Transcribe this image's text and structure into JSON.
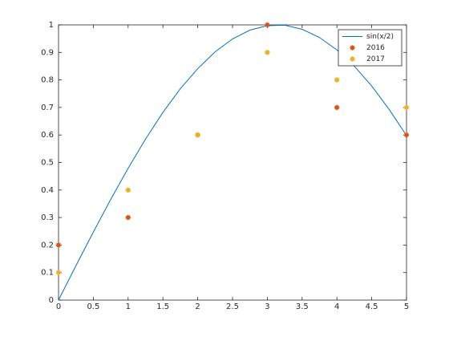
{
  "chart_data": {
    "type": "line",
    "xlim": [
      0,
      5
    ],
    "ylim": [
      0,
      1
    ],
    "xticks": [
      0,
      0.5,
      1,
      1.5,
      2,
      2.5,
      3,
      3.5,
      4,
      4.5,
      5
    ],
    "yticks": [
      0,
      0.1,
      0.2,
      0.3,
      0.4,
      0.5,
      0.6,
      0.7,
      0.8,
      0.9,
      1
    ],
    "grid": false,
    "legend": "northeast",
    "series": [
      {
        "name": "sin(x/2)",
        "color": "#0072bd",
        "style": "line",
        "x": [
          0,
          0.25,
          0.5,
          0.75,
          1,
          1.25,
          1.5,
          1.75,
          2,
          2.25,
          2.5,
          2.75,
          3,
          3.25,
          3.5,
          3.75,
          4,
          4.25,
          4.5,
          4.75,
          5
        ],
        "values": [
          0,
          0.125,
          0.247,
          0.366,
          0.479,
          0.585,
          0.682,
          0.768,
          0.841,
          0.902,
          0.949,
          0.981,
          0.997,
          0.999,
          0.984,
          0.954,
          0.909,
          0.85,
          0.778,
          0.693,
          0.598
        ]
      },
      {
        "name": "2016",
        "color": "#d95319",
        "style": "markers",
        "x": [
          0,
          1,
          2,
          3,
          4,
          5
        ],
        "values": [
          0.2,
          0.3,
          0.6,
          1,
          0.7,
          0.6
        ]
      },
      {
        "name": "2017",
        "color": "#edb120",
        "style": "markers",
        "x": [
          0,
          1,
          2,
          3,
          4,
          5
        ],
        "values": [
          0.1,
          0.4,
          0.6,
          0.9,
          0.8,
          0.7
        ]
      }
    ]
  }
}
